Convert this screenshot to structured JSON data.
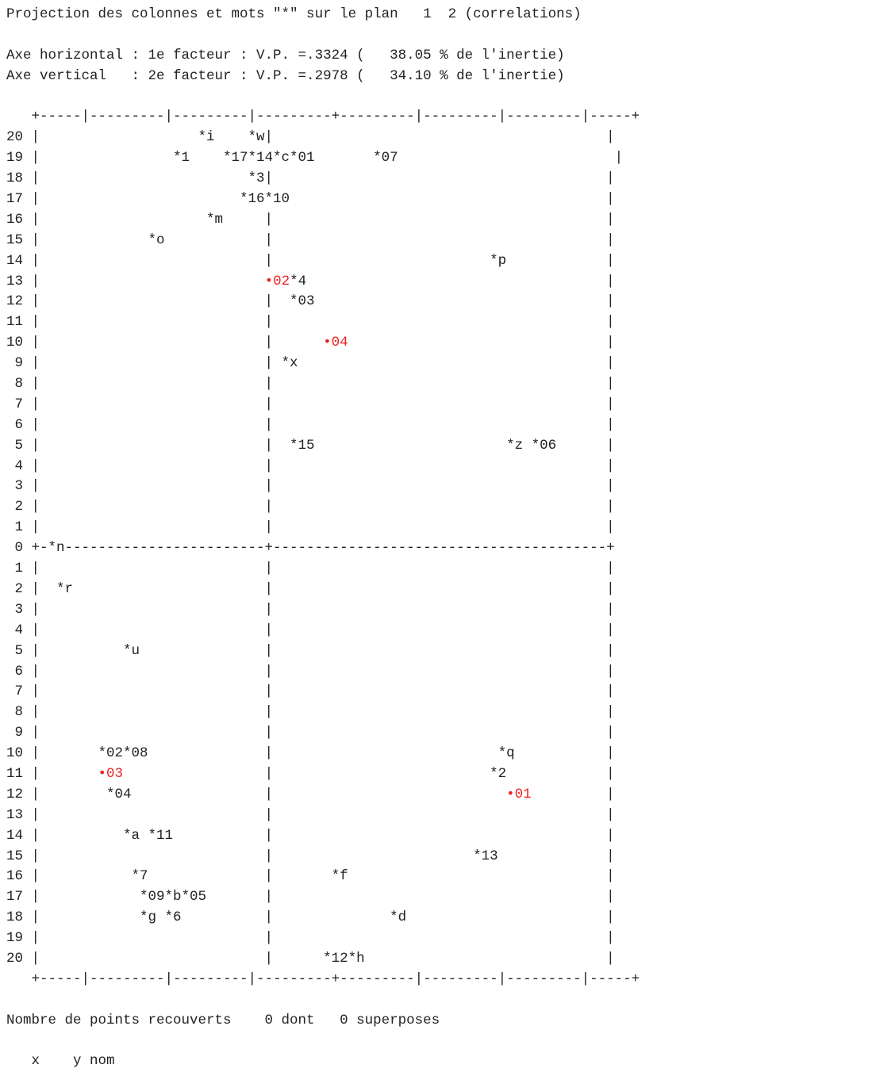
{
  "document": {
    "title_line": "Projection des colonnes et mots \"*\" sur le plan   1  2 (correlations)",
    "axis_horizontal": "Axe horizontal : 1e facteur : V.P. =.3324 (   38.05 % de l'inertie)",
    "axis_vertical": "Axe vertical   : 2e facteur : V.P. =.2978 (   34.10 % de l'inertie)",
    "summary_line": "Nombre de points recouverts    0 dont   0 superposes",
    "table_header": "x    y nom"
  },
  "plot": {
    "frame_border": "+-----|---------|---------|---------+---------|---------|---------|-----+",
    "y_labels": [
      "20",
      "19",
      "18",
      "17",
      "16",
      "15",
      "14",
      "13",
      "12",
      "11",
      "10",
      "9",
      "8",
      "7",
      "6",
      "5",
      "4",
      "3",
      "2",
      "1",
      "0",
      "1",
      "2",
      "3",
      "4",
      "5",
      "6",
      "7",
      "8",
      "9",
      "10",
      "11",
      "12",
      "13",
      "14",
      "15",
      "16",
      "17",
      "18",
      "19",
      "20"
    ],
    "rows": [
      {
        "y": "20",
        "line": "       *i    *w|                             ",
        "points": []
      },
      {
        "y": "19",
        "line": "",
        "points": []
      }
    ],
    "colors": {
      "black": "#222222",
      "supplementary": "#ee2222"
    }
  },
  "lines": [
    "20 |                   *i    *w|                                        |",
    "19 |                *1    *17*14*c*01       *07                          |",
    "18 |                         *3|                                        |",
    "17 |                        *16*10                                      |",
    "16 |                    *m     |                                        |",
    "15 |             *o            |                                        |",
    "14 |                           |                          *p            |",
    "13 |                           •02*4                                    |",
    "12 |                           |  *03                                   |",
    "11 |                           |                                        |",
    "10 |                           |      •04                               |",
    " 9 |                           | *x                                     |",
    " 8 |                           |                                        |",
    " 7 |                           |                                        |",
    " 6 |                           |                                        |",
    " 5 |                           |  *15                       *z *06      |",
    " 4 |                           |                                        |",
    " 3 |                           |                                        |",
    " 2 |                           |                                        |",
    " 1 |                           |                                        |",
    " 0 +-*n------------------------+----------------------------------------+",
    " 1 |                           |                                        |",
    " 2 |  *r                       |                                        |",
    " 3 |                           |                                        |",
    " 4 |                           |                                        |",
    " 5 |          *u               |                                        |",
    " 6 |                           |                                        |",
    " 7 |                           |                                        |",
    " 8 |                           |                                        |",
    " 9 |                           |                                        |",
    "10 |       *02*08              |                           *q           |",
    "11 |       •03                 |                          *2            |",
    "12 |        *04                |                            •01         |",
    "13 |                           |                                        |",
    "14 |          *a *11           |                                        |",
    "15 |                           |                        *13             |",
    "16 |           *7              |       *f                               |",
    "17 |            *09*b*05       |                                        |",
    "18 |            *g *6          |              *d                        |",
    "19 |                           |                                        |",
    "20 |                           |      *12*h                             |"
  ]
}
